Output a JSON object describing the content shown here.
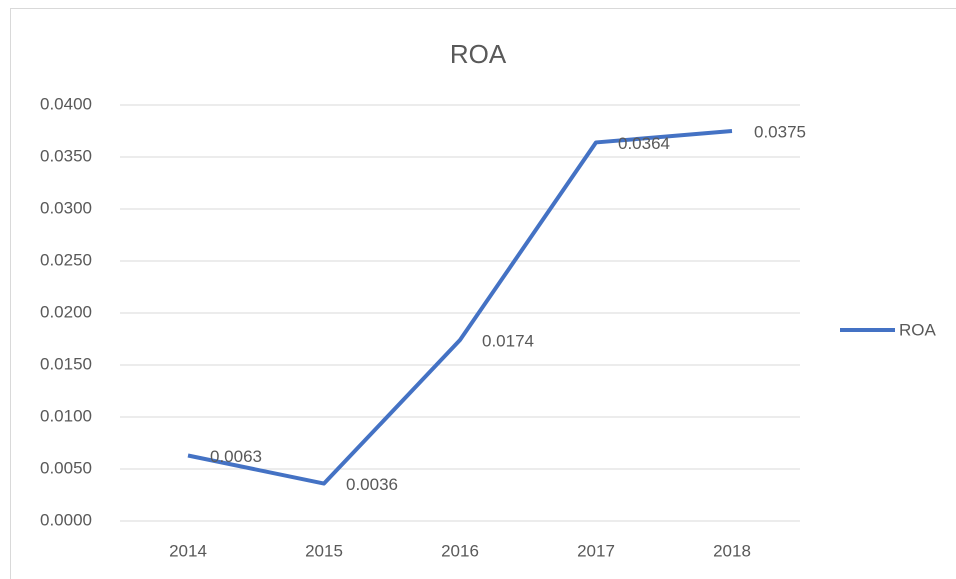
{
  "chart_data": {
    "type": "line",
    "title": "ROA",
    "categories": [
      "2014",
      "2015",
      "2016",
      "2017",
      "2018"
    ],
    "series": [
      {
        "name": "ROA",
        "color": "#4472c4",
        "values": [
          0.0063,
          0.0036,
          0.0174,
          0.0364,
          0.0375
        ]
      }
    ],
    "ylim": [
      0,
      0.04
    ],
    "yticks": [
      {
        "value": 0,
        "label": "0.0000"
      },
      {
        "value": 0.005,
        "label": "0.0050"
      },
      {
        "value": 0.01,
        "label": "0.0100"
      },
      {
        "value": 0.015,
        "label": "0.0150"
      },
      {
        "value": 0.02,
        "label": "0.0200"
      },
      {
        "value": 0.025,
        "label": "0.0250"
      },
      {
        "value": 0.03,
        "label": "0.0300"
      },
      {
        "value": 0.035,
        "label": "0.0350"
      },
      {
        "value": 0.04,
        "label": "0.0400"
      }
    ],
    "grid": true,
    "legend": "right",
    "data_labels": true
  }
}
